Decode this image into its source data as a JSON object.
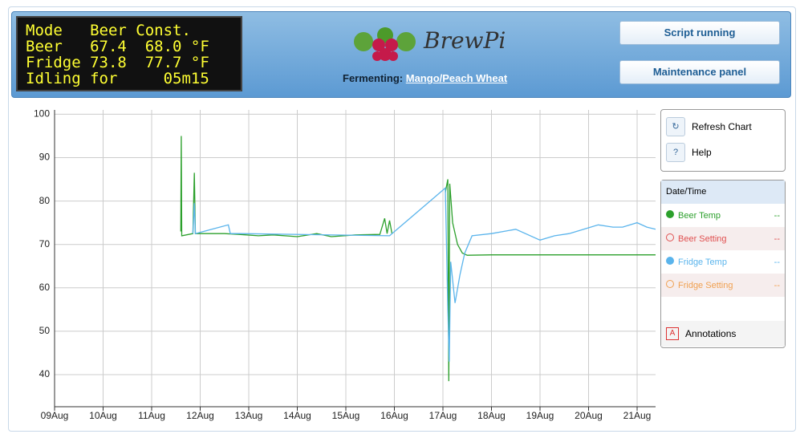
{
  "header": {
    "lcd": [
      "Mode   Beer Const.",
      "Beer   67.4  68.0 °F",
      "Fridge 73.8  77.7 °F",
      "Idling for     05m15"
    ],
    "logo": "BrewPi",
    "fermenting_label": "Fermenting:",
    "beer_name": "Mango/Peach Wheat",
    "buttons": [
      "Script running",
      "Maintenance panel"
    ]
  },
  "sidebar": {
    "buttons": [
      "Refresh Chart",
      "Help"
    ],
    "legend_title": "Date/Time",
    "legend_values": [
      "--",
      "--",
      "--",
      "--"
    ],
    "annotations": "Annotations"
  },
  "chart_data": {
    "type": "line",
    "grid": true,
    "xlim": [
      9,
      21.38
    ],
    "xticks": [
      {
        "value": 9,
        "label": "09Aug"
      },
      {
        "value": 10,
        "label": "10Aug"
      },
      {
        "value": 11,
        "label": "11Aug"
      },
      {
        "value": 12,
        "label": "12Aug"
      },
      {
        "value": 13,
        "label": "13Aug"
      },
      {
        "value": 14,
        "label": "14Aug"
      },
      {
        "value": 15,
        "label": "15Aug"
      },
      {
        "value": 16,
        "label": "16Aug"
      },
      {
        "value": 17,
        "label": "17Aug"
      },
      {
        "value": 18,
        "label": "18Aug"
      },
      {
        "value": 19,
        "label": "19Aug"
      },
      {
        "value": 20,
        "label": "20Aug"
      },
      {
        "value": 21,
        "label": "21Aug"
      }
    ],
    "ylim": [
      32.6,
      101
    ],
    "yticks": [
      40,
      50,
      60,
      70,
      80,
      90,
      100
    ],
    "series": [
      {
        "name": "Beer Temp",
        "color": "#2ca02c",
        "x": [
          11.6,
          11.61,
          11.62,
          11.85,
          11.88,
          11.9,
          12.5,
          12.8,
          13.2,
          13.5,
          14.0,
          14.4,
          14.7,
          15.2,
          15.7,
          15.8,
          15.85,
          15.9,
          15.95,
          16.5,
          17.05,
          17.1,
          17.12,
          17.14,
          17.2,
          17.3,
          17.4,
          17.5,
          18.0,
          19.0,
          20.0,
          21.0,
          21.38
        ],
        "values": [
          73,
          95,
          72,
          72.5,
          86.5,
          72.5,
          72.5,
          72.3,
          72,
          72.2,
          71.8,
          72.5,
          71.8,
          72.2,
          72.3,
          76,
          72.5,
          75.5,
          72.5,
          null,
          82,
          85,
          38.5,
          84,
          75,
          70,
          68,
          67.5,
          67.6,
          67.6,
          67.6,
          67.6,
          67.6
        ]
      },
      {
        "name": "Beer Setting",
        "color": "#e05050",
        "x": [],
        "values": []
      },
      {
        "name": "Fridge Temp",
        "color": "#5ab4ec",
        "x": [
          11.85,
          11.88,
          11.9,
          12.58,
          12.62,
          12.8,
          15.9,
          17.05,
          17.1,
          17.13,
          17.16,
          17.25,
          17.35,
          17.45,
          17.6,
          18.0,
          18.5,
          19.0,
          19.3,
          19.6,
          19.9,
          20.2,
          20.5,
          20.7,
          21.0,
          21.2,
          21.38
        ],
        "values": [
          72.5,
          79.5,
          72.5,
          74.5,
          72.5,
          72.5,
          72,
          83,
          55,
          43,
          66,
          56.5,
          63,
          68,
          72,
          72.5,
          73.5,
          71,
          72,
          72.5,
          73.5,
          74.5,
          74,
          74,
          75,
          74,
          73.5
        ]
      },
      {
        "name": "Fridge Setting",
        "color": "#f0a050",
        "x": [],
        "values": []
      }
    ]
  }
}
